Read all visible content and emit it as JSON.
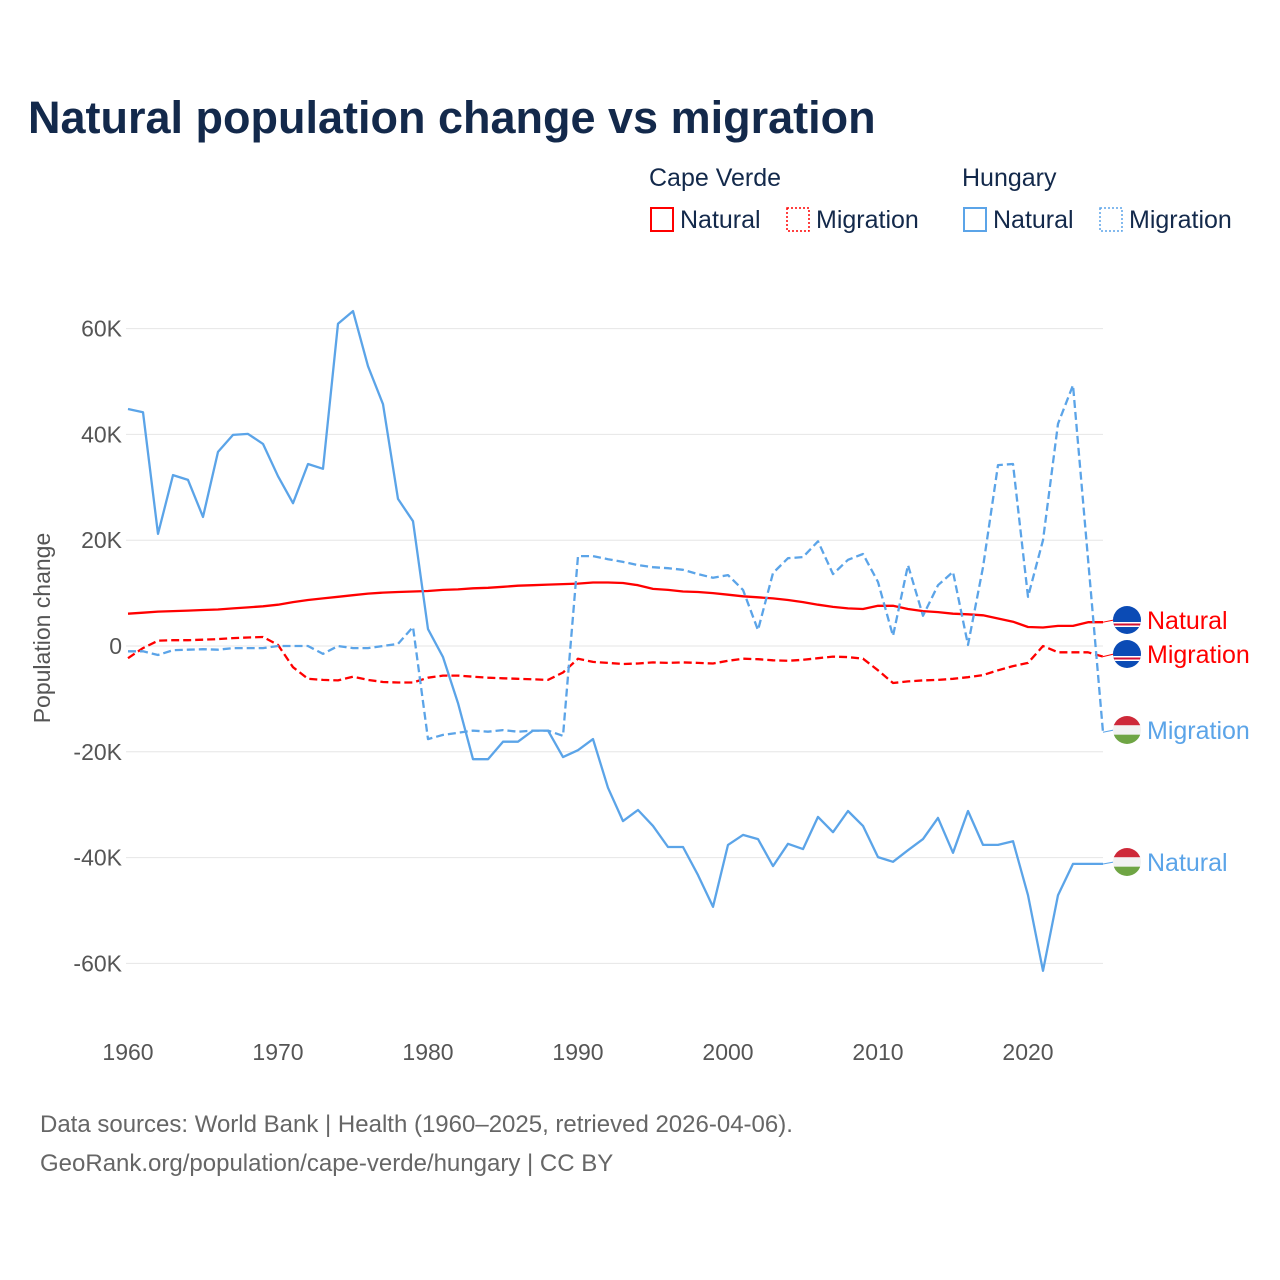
{
  "title": "Natural population change vs migration",
  "legend": {
    "groups": [
      {
        "country": "Cape Verde",
        "items": [
          "Natural",
          "Migration"
        ],
        "color": "#ff0000"
      },
      {
        "country": "Hungary",
        "items": [
          "Natural",
          "Migration"
        ],
        "color": "#5ba4e8"
      }
    ]
  },
  "footer": {
    "line1": "Data sources: World Bank | Health (1960–2025, retrieved 2026-04-06).",
    "line2": "GeoRank.org/population/cape-verde/hungary | CC BY"
  },
  "chart_data": {
    "type": "line",
    "title": "Natural population change vs migration",
    "xlabel": "",
    "ylabel": "Population change",
    "xlim": [
      1960,
      2025
    ],
    "ylim": [
      -70000,
      65000
    ],
    "x_ticks": [
      1960,
      1970,
      1980,
      1990,
      2000,
      2010,
      2020
    ],
    "x_tick_labels": [
      "1960",
      "1970",
      "1980",
      "1990",
      "2000",
      "2010",
      "2020"
    ],
    "y_ticks": [
      60000,
      40000,
      20000,
      0,
      -20000,
      -40000,
      -60000
    ],
    "y_tick_labels": [
      "60K",
      "40K",
      "20K",
      "0",
      "-20K",
      "-40K",
      "-60K"
    ],
    "grid": true,
    "legend_position": "top-right",
    "x_start": 1960,
    "series": [
      {
        "name": "Cape Verde Natural",
        "end_label": "Natural",
        "country": "Cape Verde",
        "color": "#ff0000",
        "dash": false,
        "values_k": [
          6.1,
          6.3,
          6.5,
          6.6,
          6.7,
          6.8,
          6.9,
          7.1,
          7.3,
          7.5,
          7.8,
          8.3,
          8.7,
          9.0,
          9.3,
          9.6,
          9.9,
          10.1,
          10.2,
          10.3,
          10.4,
          10.6,
          10.7,
          10.9,
          11.0,
          11.2,
          11.4,
          11.5,
          11.6,
          11.7,
          11.8,
          12.0,
          12.0,
          11.9,
          11.5,
          10.8,
          10.6,
          10.3,
          10.2,
          10.0,
          9.7,
          9.4,
          9.2,
          9.0,
          8.7,
          8.3,
          7.8,
          7.4,
          7.1,
          7.0,
          7.6,
          7.6,
          7.0,
          6.6,
          6.4,
          6.1,
          6.0,
          5.8,
          5.2,
          4.6,
          3.6,
          3.5,
          3.8,
          3.8,
          4.5,
          4.5
        ]
      },
      {
        "name": "Cape Verde Migration",
        "end_label": "Migration",
        "country": "Cape Verde",
        "color": "#ff0000",
        "dash": true,
        "values_k": [
          -2.3,
          -0.4,
          1.0,
          1.1,
          1.1,
          1.2,
          1.3,
          1.5,
          1.6,
          1.7,
          0.2,
          -4.0,
          -6.2,
          -6.4,
          -6.5,
          -5.8,
          -6.4,
          -6.8,
          -6.9,
          -6.9,
          -6.0,
          -5.6,
          -5.6,
          -5.8,
          -6.0,
          -6.1,
          -6.2,
          -6.3,
          -6.4,
          -5.0,
          -2.4,
          -3.0,
          -3.2,
          -3.4,
          -3.3,
          -3.1,
          -3.2,
          -3.1,
          -3.2,
          -3.3,
          -2.8,
          -2.4,
          -2.5,
          -2.7,
          -2.8,
          -2.6,
          -2.3,
          -2.0,
          -2.1,
          -2.4,
          -4.6,
          -7.0,
          -6.7,
          -6.5,
          -6.4,
          -6.2,
          -5.9,
          -5.5,
          -4.6,
          -3.8,
          -3.2,
          0.0,
          -1.2,
          -1.2,
          -1.2,
          -2.0
        ]
      },
      {
        "name": "Hungary Migration",
        "end_label": "Migration",
        "country": "Hungary",
        "color": "#5ba4e8",
        "dash": true,
        "values_k": [
          -1.0,
          -1.0,
          -1.7,
          -0.8,
          -0.7,
          -0.6,
          -0.7,
          -0.4,
          -0.4,
          -0.4,
          0.0,
          0.0,
          0.0,
          -1.5,
          0.0,
          -0.4,
          -0.4,
          0.0,
          0.4,
          3.6,
          -17.6,
          -16.8,
          -16.4,
          -16.0,
          -16.2,
          -15.9,
          -16.2,
          -16.0,
          -16.0,
          -17.0,
          17.0,
          17.0,
          16.4,
          15.9,
          15.3,
          14.9,
          14.7,
          14.4,
          13.6,
          12.9,
          13.4,
          10.6,
          3.0,
          13.8,
          16.6,
          16.8,
          19.8,
          13.6,
          16.3,
          17.4,
          12.1,
          1.9,
          15.3,
          5.7,
          11.5,
          14.0,
          0.2,
          14.9,
          34.2,
          34.4,
          9.3,
          20.0,
          42.0,
          49.3,
          16.5,
          -16.3
        ]
      },
      {
        "name": "Hungary Natural",
        "end_label": "Natural",
        "country": "Hungary",
        "color": "#5ba4e8",
        "dash": false,
        "values_k": [
          44.8,
          44.2,
          21.2,
          32.3,
          31.4,
          24.4,
          36.7,
          39.9,
          40.1,
          38.2,
          32.1,
          27.0,
          34.4,
          33.5,
          60.9,
          63.3,
          52.9,
          45.7,
          27.8,
          23.6,
          3.2,
          -2.1,
          -10.8,
          -21.4,
          -21.4,
          -18.1,
          -18.1,
          -16.0,
          -16.0,
          -21.0,
          -19.7,
          -17.6,
          -26.8,
          -33.1,
          -31.0,
          -34.0,
          -38.0,
          -38.0,
          -43.3,
          -49.3,
          -37.6,
          -35.7,
          -36.5,
          -41.6,
          -37.4,
          -38.4,
          -32.3,
          -35.2,
          -31.2,
          -34.0,
          -39.9,
          -40.8,
          -38.6,
          -36.5,
          -32.5,
          -39.1,
          -31.2,
          -37.6,
          -37.6,
          -36.9,
          -47.1,
          -61.4,
          -47.1,
          -41.2,
          -41.2,
          -41.2
        ]
      }
    ]
  }
}
